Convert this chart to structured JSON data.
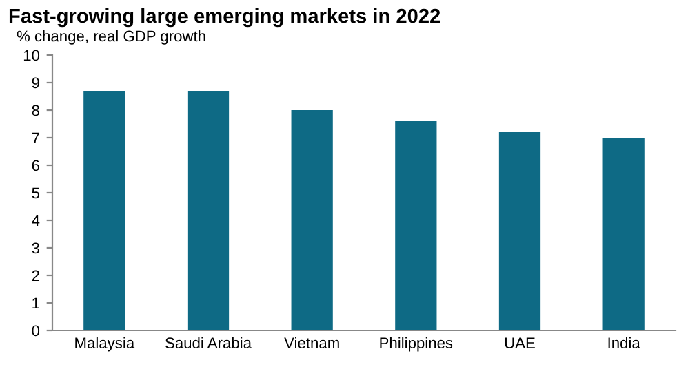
{
  "chart_data": {
    "type": "bar",
    "title": "Fast-growing large emerging markets in 2022",
    "ylabel": "% change, real GDP growth",
    "categories": [
      "Malaysia",
      "Saudi Arabia",
      "Vietnam",
      "Philippines",
      "UAE",
      "India"
    ],
    "values": [
      8.7,
      8.7,
      8.0,
      7.6,
      7.2,
      7.0
    ],
    "color": "#0e6a85",
    "ylim": [
      0,
      10
    ],
    "yticks": [
      0,
      1,
      2,
      3,
      4,
      5,
      6,
      7,
      8,
      9,
      10
    ],
    "grid": false
  }
}
